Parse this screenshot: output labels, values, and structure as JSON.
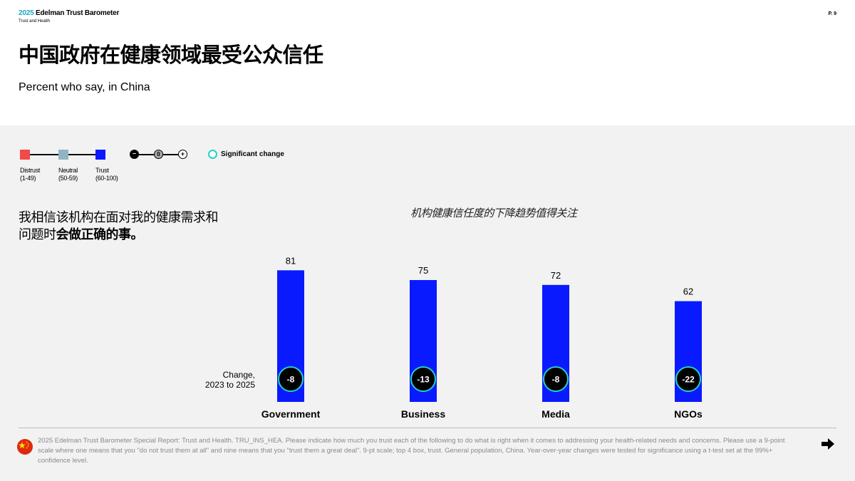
{
  "header": {
    "brand_year": "2025",
    "brand_name": " Edelman Trust Barometer",
    "brand_sub": "Trust and Health",
    "page": "P. 9"
  },
  "title": "中国政府在健康领域最受公众信任",
  "subtitle": "Percent who say, in China",
  "legend": {
    "distrust": "Distrust",
    "distrust_range": "(1-49)",
    "neutral": "Neutral",
    "neutral_range": "(50-59)",
    "trust": "Trust",
    "trust_range": "(60-100)",
    "minus": "–",
    "zero": "0",
    "plus": "+",
    "significant": "Significant change",
    "colors": {
      "distrust": "#f04a4a",
      "neutral": "#92b4c2",
      "trust": "#0a1aff"
    }
  },
  "question": {
    "line1": "我相信该机构在面对我的健康需求和",
    "line2_plain": "问题时",
    "line2_bold": "会做正确的事。"
  },
  "annotation": "机构健康信任度的下降趋势值得关注",
  "change_label": [
    "Change,",
    "2023 to 2025"
  ],
  "chart_data": {
    "type": "bar",
    "categories": [
      "Government",
      "Business",
      "Media",
      "NGOs"
    ],
    "values": [
      81,
      75,
      72,
      62
    ],
    "changes": [
      "-8",
      "-13",
      "-8",
      "-22"
    ],
    "significant": [
      true,
      true,
      true,
      true
    ],
    "bar_color": "#0a1aff",
    "ylim": [
      0,
      100
    ]
  },
  "footnote": "2025 Edelman Trust Barometer Special Report: Trust and Health. TRU_INS_HEA. Please indicate how much you trust each of the following to do what is right when it comes to addressing your health-related needs and concerns. Please use a 9-point scale where one means that you \"do not trust them at all\" and nine means that you \"trust them a great deal\". 9-pt scale; top 4 box, trust. General population, China. Year-over-year changes were tested for significance using a t-test set at the 99%+ confidence level."
}
